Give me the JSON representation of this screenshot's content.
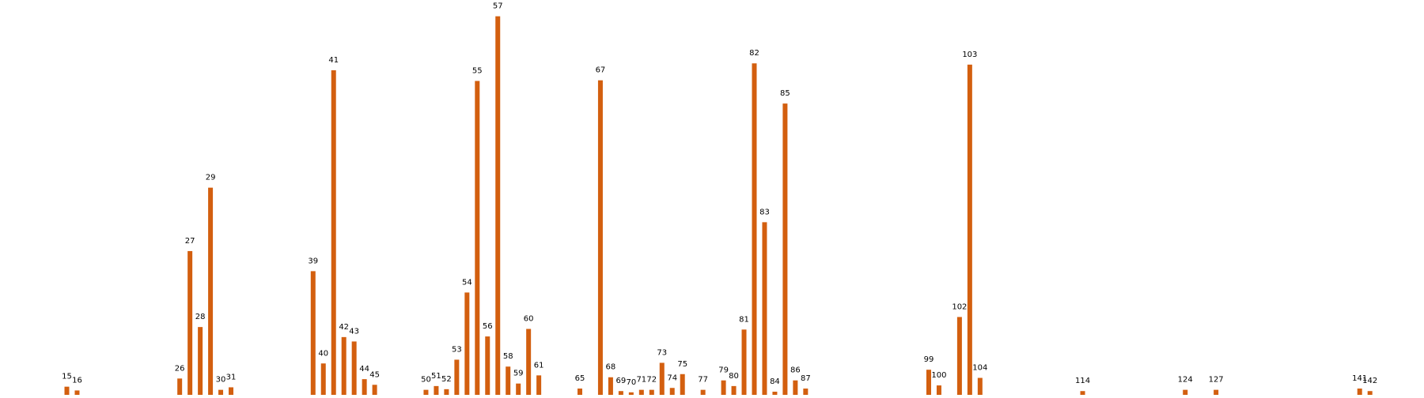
{
  "chart_data": {
    "type": "bar",
    "title": "",
    "xlabel": "",
    "ylabel": "",
    "grid": false,
    "bar_color": "#d35f0f",
    "ylim": [
      0,
      60
    ],
    "x": [
      15,
      16,
      26,
      27,
      28,
      29,
      30,
      31,
      39,
      40,
      41,
      42,
      43,
      44,
      45,
      50,
      51,
      52,
      53,
      54,
      55,
      56,
      57,
      58,
      59,
      60,
      61,
      65,
      67,
      68,
      69,
      70,
      71,
      72,
      73,
      74,
      75,
      77,
      79,
      80,
      81,
      82,
      83,
      84,
      85,
      86,
      87,
      99,
      100,
      102,
      103,
      104,
      114,
      124,
      127,
      141,
      142
    ],
    "values": [
      1.3,
      0.7,
      2.6,
      22.9,
      10.8,
      33.0,
      0.8,
      1.2,
      19.7,
      5.0,
      51.7,
      9.2,
      8.5,
      2.5,
      1.6,
      0.8,
      1.4,
      0.9,
      5.6,
      16.3,
      50.0,
      9.3,
      60.3,
      4.5,
      1.8,
      10.5,
      3.1,
      1.0,
      50.1,
      2.8,
      0.6,
      0.4,
      0.8,
      0.8,
      5.1,
      1.1,
      3.3,
      0.8,
      2.3,
      1.4,
      10.4,
      52.8,
      27.5,
      0.5,
      46.4,
      2.3,
      1.0,
      4.0,
      1.5,
      12.4,
      52.6,
      2.7,
      0.6,
      0.8,
      0.8,
      1.0,
      0.6
    ],
    "labels": [
      "15",
      "16",
      "26",
      "27",
      "28",
      "29",
      "30",
      "31",
      "39",
      "40",
      "41",
      "42",
      "43",
      "44",
      "45",
      "50",
      "51",
      "52",
      "53",
      "54",
      "55",
      "56",
      "57",
      "58",
      "59",
      "60",
      "61",
      "65",
      "67",
      "68",
      "69",
      "70",
      "71",
      "72",
      "73",
      "74",
      "75",
      "77",
      "79",
      "80",
      "81",
      "82",
      "83",
      "84",
      "85",
      "86",
      "87",
      "99",
      "100",
      "102",
      "103",
      "104",
      "114",
      "124",
      "127",
      "141",
      "142"
    ]
  }
}
